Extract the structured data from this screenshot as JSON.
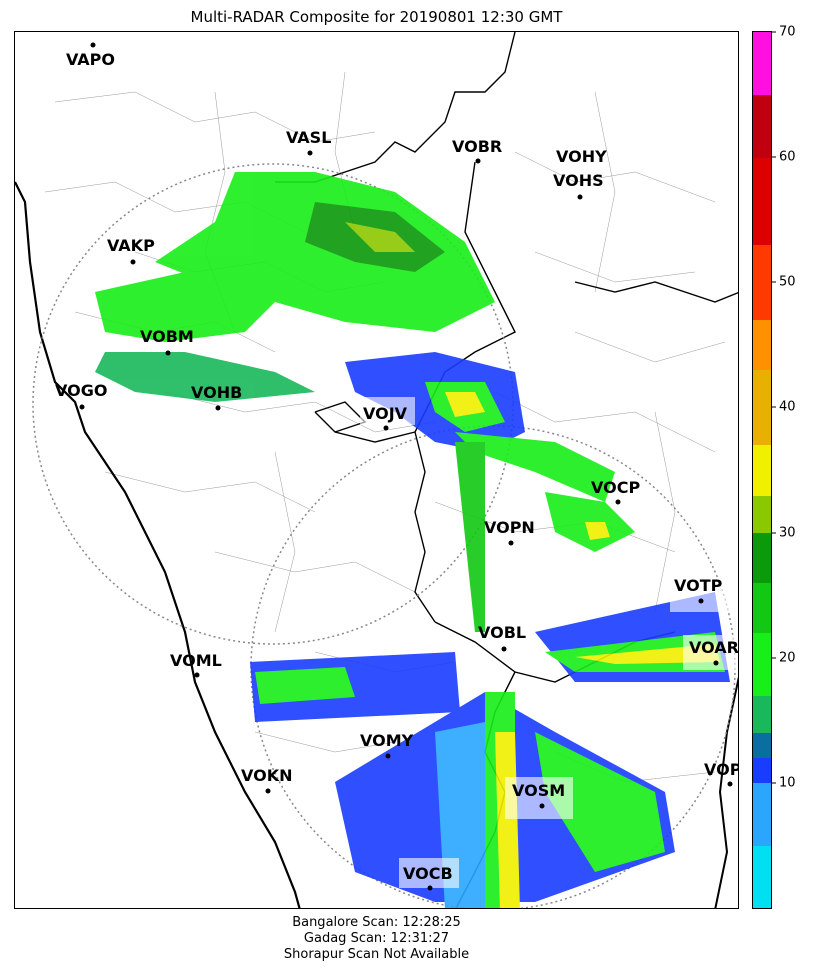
{
  "title": "Multi-RADAR Composite for 20190801 12:30 GMT",
  "stations": [
    {
      "id": "VAPO",
      "label": "VAPO"
    },
    {
      "id": "VASL",
      "label": "VASL"
    },
    {
      "id": "VOBR",
      "label": "VOBR"
    },
    {
      "id": "VOHY",
      "label": "VOHY"
    },
    {
      "id": "VOHS",
      "label": "VOHS"
    },
    {
      "id": "VAKP",
      "label": "VAKP"
    },
    {
      "id": "VOBM",
      "label": "VOBM"
    },
    {
      "id": "VOGO",
      "label": "VOGO"
    },
    {
      "id": "VOHB",
      "label": "VOHB"
    },
    {
      "id": "VOJV",
      "label": "VOJV"
    },
    {
      "id": "VOCP",
      "label": "VOCP"
    },
    {
      "id": "VOPN",
      "label": "VOPN"
    },
    {
      "id": "VOTP",
      "label": "VOTP"
    },
    {
      "id": "VOBL",
      "label": "VOBL"
    },
    {
      "id": "VOAR",
      "label": "VOAR"
    },
    {
      "id": "VOML",
      "label": "VOML"
    },
    {
      "id": "VOMY",
      "label": "VOMY"
    },
    {
      "id": "VOKN",
      "label": "VOKN"
    },
    {
      "id": "VOSM",
      "label": "VOSM"
    },
    {
      "id": "VOPC",
      "label": "VOPC"
    },
    {
      "id": "VOCB",
      "label": "VOCB"
    }
  ],
  "colorbar": {
    "min": 0,
    "max": 70,
    "ticks": [
      "10",
      "20",
      "30",
      "40",
      "50",
      "60",
      "70"
    ],
    "bands": [
      {
        "from": 0,
        "to": 5,
        "color": "#00e0f0"
      },
      {
        "from": 5,
        "to": 10,
        "color": "#2aa6ff"
      },
      {
        "from": 10,
        "to": 12,
        "color": "#1a3cff"
      },
      {
        "from": 12,
        "to": 14,
        "color": "#0a6ea0"
      },
      {
        "from": 14,
        "to": 17,
        "color": "#19b85a"
      },
      {
        "from": 17,
        "to": 22,
        "color": "#18ee18"
      },
      {
        "from": 22,
        "to": 26,
        "color": "#12c812"
      },
      {
        "from": 26,
        "to": 30,
        "color": "#0a9a0a"
      },
      {
        "from": 30,
        "to": 33,
        "color": "#8cc800"
      },
      {
        "from": 33,
        "to": 37,
        "color": "#f0f000"
      },
      {
        "from": 37,
        "to": 43,
        "color": "#e8b000"
      },
      {
        "from": 43,
        "to": 47,
        "color": "#ff9000"
      },
      {
        "from": 47,
        "to": 53,
        "color": "#ff3a00"
      },
      {
        "from": 53,
        "to": 60,
        "color": "#dd0000"
      },
      {
        "from": 60,
        "to": 65,
        "color": "#c00010"
      },
      {
        "from": 65,
        "to": 70,
        "color": "#ff10e0"
      }
    ]
  },
  "footer": {
    "bangalore": "Bangalore Scan: 12:28:25",
    "gadag": "Gadag Scan: 12:31:27",
    "shorapur": "Shorapur Scan Not Available"
  }
}
